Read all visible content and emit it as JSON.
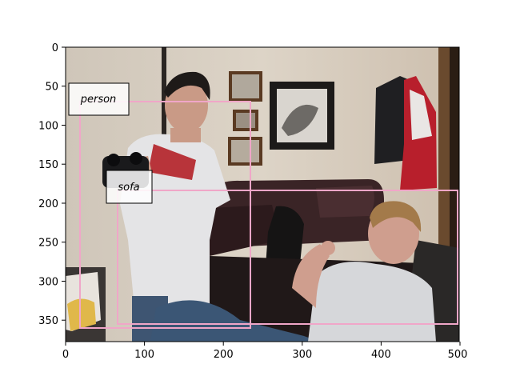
{
  "axes": {
    "x_ticks": [
      "0",
      "100",
      "200",
      "300",
      "400",
      "500"
    ],
    "y_ticks": [
      "0",
      "50",
      "100",
      "150",
      "200",
      "250",
      "300",
      "350"
    ]
  },
  "photo": {
    "description_colors": {
      "wall": "#d8cfc2",
      "sofa": "#3a2426",
      "shirt": "#e4e4e6",
      "hair": "#1e1a18",
      "skin": "#c99a86",
      "jacket_red": "#b81f2c"
    }
  },
  "detections": [
    {
      "label": "person",
      "color": "#f0a6c8"
    },
    {
      "label": "sofa",
      "color": "#f0a6c8"
    }
  ]
}
